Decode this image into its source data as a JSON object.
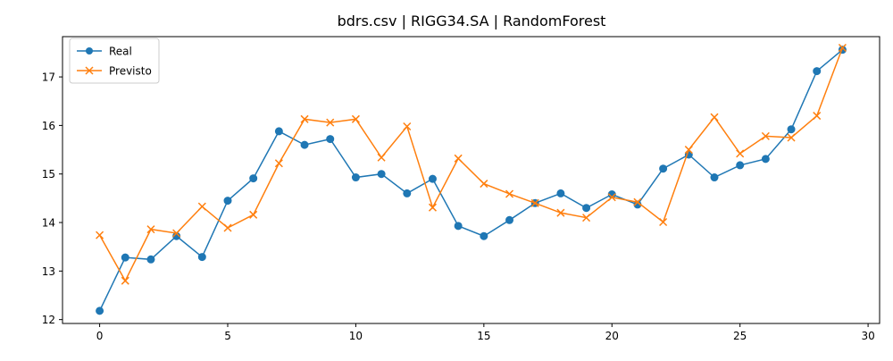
{
  "chart_data": {
    "type": "line",
    "title": "bdrs.csv | RIGG34.SA | RandomForest",
    "xlabel": "",
    "ylabel": "",
    "xlim": [
      -1.45,
      30.45
    ],
    "ylim": [
      11.92,
      17.83
    ],
    "x_ticks": [
      0,
      5,
      10,
      15,
      20,
      25,
      30
    ],
    "y_ticks": [
      12,
      13,
      14,
      15,
      16,
      17
    ],
    "grid": false,
    "legend_position": "upper-left",
    "x": [
      0,
      1,
      2,
      3,
      4,
      5,
      6,
      7,
      8,
      9,
      10,
      11,
      12,
      13,
      14,
      15,
      16,
      17,
      18,
      19,
      20,
      21,
      22,
      23,
      24,
      25,
      26,
      27,
      28,
      29
    ],
    "series": [
      {
        "name": "Real",
        "color": "#1f77b4",
        "marker": "circle",
        "values": [
          12.18,
          13.28,
          13.24,
          13.72,
          13.29,
          14.45,
          14.91,
          15.88,
          15.6,
          15.72,
          14.93,
          15.0,
          14.6,
          14.9,
          13.93,
          13.72,
          14.05,
          14.4,
          14.6,
          14.3,
          14.58,
          14.37,
          15.11,
          15.4,
          14.93,
          15.18,
          15.31,
          15.92,
          17.12,
          17.56
        ]
      },
      {
        "name": "Previsto",
        "color": "#ff7f0e",
        "marker": "x",
        "values": [
          13.74,
          12.8,
          13.86,
          13.78,
          14.33,
          13.89,
          14.16,
          15.22,
          16.13,
          16.06,
          16.13,
          15.34,
          15.98,
          14.31,
          15.32,
          14.8,
          14.59,
          14.4,
          14.2,
          14.1,
          14.52,
          14.42,
          14.01,
          15.5,
          16.17,
          15.42,
          15.78,
          15.75,
          16.2,
          17.6
        ]
      }
    ]
  }
}
